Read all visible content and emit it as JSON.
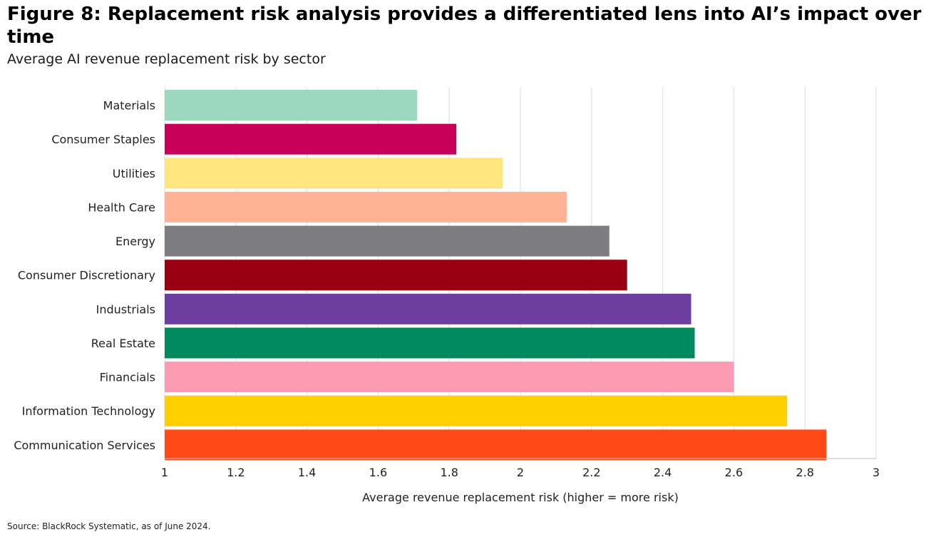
{
  "header": {
    "title": "Figure 8: Replacement risk analysis provides a differentiated lens into AI’s impact over time",
    "subtitle": "Average AI revenue replacement risk by sector"
  },
  "footer": {
    "source": "Source: BlackRock Systematic, as of June 2024."
  },
  "chart_data": {
    "type": "bar",
    "orientation": "horizontal",
    "title": "",
    "xlabel": "Average revenue replacement risk (higher = more risk)",
    "ylabel": "",
    "xlim": [
      1,
      3
    ],
    "xticks": [
      "1",
      "1.2",
      "1.4",
      "1.6",
      "1.8",
      "2",
      "2.2",
      "2.4",
      "2.6",
      "2.8",
      "3"
    ],
    "grid": "vertical",
    "categories": [
      "Materials",
      "Consumer Staples",
      "Utilities",
      "Health Care",
      "Energy",
      "Consumer Discretionary",
      "Industrials",
      "Real Estate",
      "Financials",
      "Information Technology",
      "Communication Services"
    ],
    "values": [
      1.71,
      1.82,
      1.95,
      2.13,
      2.25,
      2.3,
      2.48,
      2.49,
      2.6,
      2.75,
      2.86
    ],
    "colors": [
      "#9bd8bf",
      "#c7005a",
      "#ffe67f",
      "#ffb294",
      "#7d7d80",
      "#990012",
      "#6d3fa0",
      "#008a5e",
      "#fd9bb2",
      "#ffcf00",
      "#ff4a17"
    ]
  }
}
